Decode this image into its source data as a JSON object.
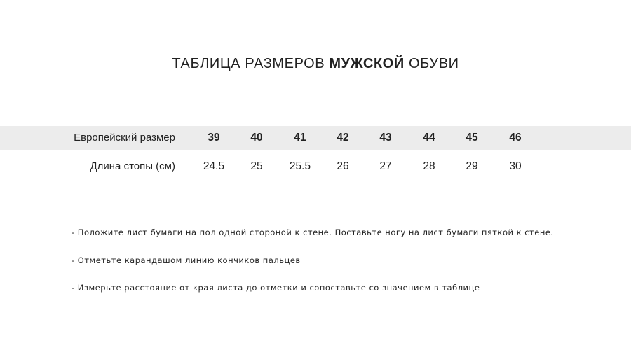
{
  "title": {
    "prefix": "ТАБЛИЦА РАЗМЕРОВ ",
    "bold": "МУЖСКОЙ",
    "suffix": " ОБУВИ"
  },
  "table": {
    "header_label": "Европейский размер",
    "sizes": [
      "39",
      "40",
      "41",
      "42",
      "43",
      "44",
      "45",
      "46"
    ],
    "length_label": "Длина стопы (см)",
    "lengths": [
      "24.5",
      "25",
      "25.5",
      "26",
      "27",
      "28",
      "29",
      "30"
    ]
  },
  "instructions": [
    "- Положите лист бумаги на пол одной стороной к стене. Поставьте ногу на лист бумаги пяткой к стене.",
    "- Отметьте карандашом линию кончиков пальцев",
    "- Измерьте расстояние от края листа до отметки и сопоставьте со значением в таблице"
  ],
  "colors": {
    "band": "#ececec",
    "text": "#222222"
  }
}
